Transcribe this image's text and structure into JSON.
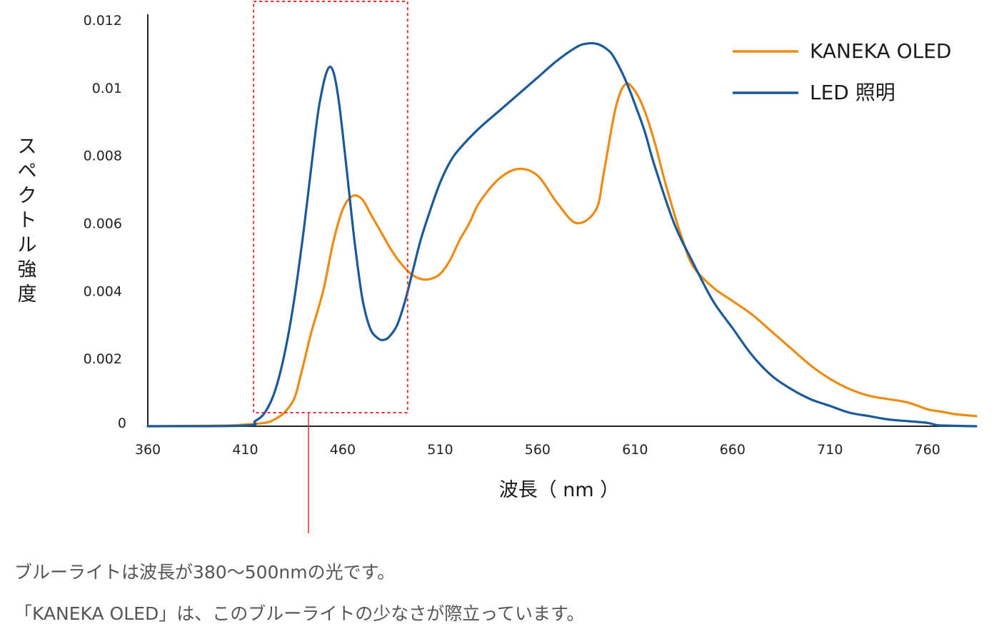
{
  "chart_data": {
    "type": "line",
    "xlabel": "波長（ nm ）",
    "ylabel": "スペクトル強度",
    "xlim": [
      360,
      785
    ],
    "ylim": [
      0,
      0.012
    ],
    "xticks": [
      "360",
      "410",
      "460",
      "510",
      "560",
      "610",
      "660",
      "710",
      "760"
    ],
    "yticks": [
      "0",
      "0.002",
      "0.004",
      "0.006",
      "0.008",
      "0.01",
      "0.012"
    ],
    "legend_position": "top-right",
    "highlight_region": {
      "x_range": [
        415,
        490
      ],
      "y_range": [
        0.0004,
        0.0126
      ],
      "style": "red dotted box"
    },
    "series": [
      {
        "name": "KANEKA OLED",
        "color": "#ED8B12",
        "x": [
          360,
          400,
          410,
          420,
          425,
          430,
          435,
          438,
          441,
          444,
          450,
          455,
          460,
          465,
          470,
          475,
          480,
          485,
          490,
          495,
          500,
          505,
          510,
          515,
          520,
          525,
          530,
          540,
          550,
          560,
          570,
          580,
          590,
          594,
          600,
          605,
          610,
          615,
          620,
          625,
          630,
          635,
          640,
          650,
          660,
          670,
          680,
          690,
          700,
          710,
          720,
          730,
          740,
          750,
          760,
          765,
          770,
          775,
          785
        ],
        "y": [
          0,
          2e-05,
          5e-05,
          0.0001,
          0.0002,
          0.0004,
          0.0008,
          0.0014,
          0.0021,
          0.0028,
          0.004,
          0.0054,
          0.0064,
          0.0068,
          0.0067,
          0.0062,
          0.0057,
          0.0052,
          0.0048,
          0.0045,
          0.00435,
          0.00435,
          0.0045,
          0.0049,
          0.0055,
          0.006,
          0.0066,
          0.0073,
          0.0076,
          0.0074,
          0.0066,
          0.006,
          0.0064,
          0.0075,
          0.0094,
          0.0101,
          0.0099,
          0.0093,
          0.0084,
          0.0073,
          0.0063,
          0.0054,
          0.0047,
          0.0041,
          0.0037,
          0.0033,
          0.0028,
          0.0023,
          0.0018,
          0.0014,
          0.0011,
          0.0009,
          0.0008,
          0.0007,
          0.0005,
          0.00045,
          0.0004,
          0.00035,
          0.0003
        ]
      },
      {
        "name": "LED 照明",
        "color": "#1A5A9A",
        "x": [
          360,
          410,
          415,
          420,
          425,
          430,
          435,
          440,
          445,
          448,
          452,
          455,
          458,
          462,
          466,
          470,
          474,
          478,
          481,
          484,
          488,
          492,
          496,
          500,
          505,
          510,
          515,
          520,
          530,
          540,
          550,
          560,
          570,
          580,
          585,
          590,
          594,
          598,
          602,
          606,
          610,
          615,
          620,
          630,
          640,
          650,
          660,
          670,
          680,
          690,
          700,
          710,
          720,
          730,
          740,
          750,
          760,
          765,
          770,
          775,
          785
        ],
        "y": [
          0,
          2e-05,
          0.00015,
          0.0004,
          0.001,
          0.0021,
          0.0037,
          0.0058,
          0.0082,
          0.0095,
          0.0105,
          0.0105,
          0.0096,
          0.0076,
          0.0055,
          0.0038,
          0.0029,
          0.0026,
          0.00255,
          0.00265,
          0.003,
          0.0037,
          0.0046,
          0.0055,
          0.0064,
          0.0072,
          0.0078,
          0.0082,
          0.0088,
          0.0093,
          0.0098,
          0.0103,
          0.0108,
          0.0112,
          0.0113,
          0.0113,
          0.0112,
          0.011,
          0.0106,
          0.0101,
          0.0095,
          0.0087,
          0.0077,
          0.006,
          0.0048,
          0.0037,
          0.0029,
          0.0021,
          0.0015,
          0.0011,
          0.0008,
          0.0006,
          0.0004,
          0.0003,
          0.0002,
          0.00015,
          0.0001,
          3e-05,
          2e-05,
          1e-05,
          0
        ]
      }
    ]
  },
  "captions": [
    "ブルーライトは波長が380〜500nmの光です。",
    "「KANEKA OLED」は、このブルーライトの少なさが際立っています。"
  ]
}
